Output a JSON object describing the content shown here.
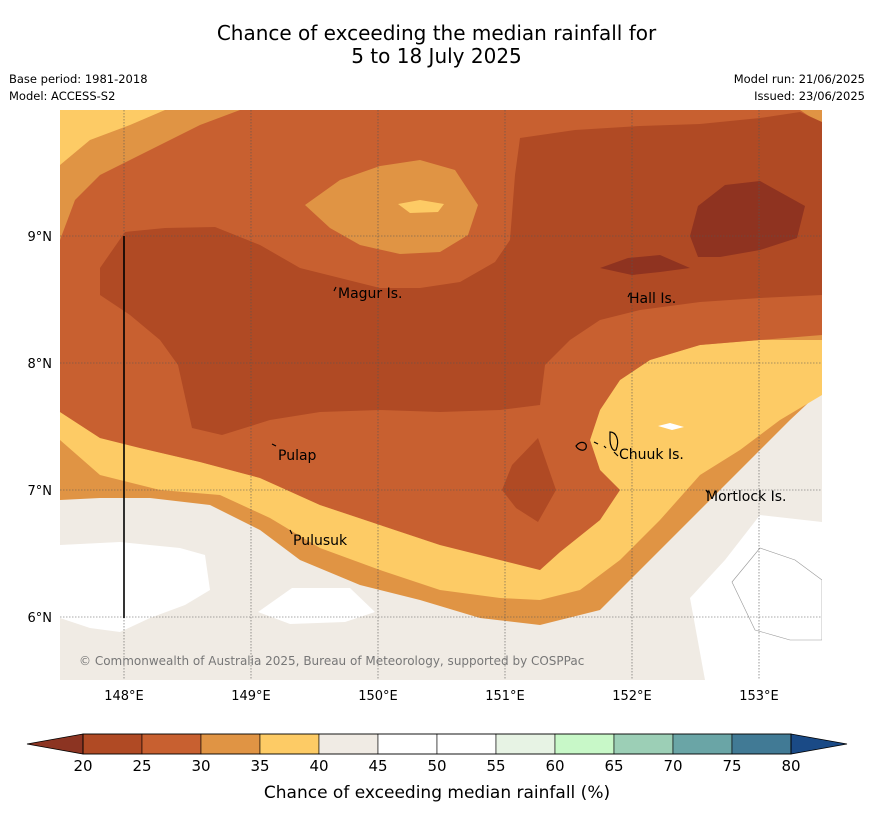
{
  "title_line1": "Chance of exceeding the median rainfall for",
  "title_line2": "5 to 18 July 2025",
  "base_period": "Base period: 1981-2018",
  "model": "Model: ACCESS-S2",
  "model_run": "Model run: 21/06/2025",
  "issued": "Issued: 23/06/2025",
  "places": {
    "magur": "Magur Is.",
    "hall": "Hall Is.",
    "pulap": "Pulap",
    "chuuk": "Chuuk Is.",
    "mortlock": "Mortlock Is.",
    "pulusuk": "Pulusuk"
  },
  "lat_ticks": [
    "9°N",
    "8°N",
    "7°N",
    "6°N"
  ],
  "lon_ticks": [
    "148°E",
    "149°E",
    "150°E",
    "151°E",
    "152°E",
    "153°E"
  ],
  "copyright": "© Commonwealth of Australia 2025, Bureau of Meteorology, supported by COSPPac",
  "colorbar": {
    "label": "Chance of exceeding median rainfall (%)",
    "ticks": [
      "20",
      "25",
      "30",
      "35",
      "40",
      "45",
      "50",
      "55",
      "60",
      "65",
      "70",
      "75",
      "80"
    ],
    "colors": [
      "#b04a24",
      "#c86030",
      "#e09444",
      "#fdcb65",
      "#f0ebe4",
      "#ffffff",
      "#ffffff",
      "#e7f3e4",
      "#c8f8c8",
      "#9ccfb6",
      "#6aa5a6",
      "#417a95"
    ],
    "under_color": "#8c3422",
    "over_color": "#1a4a86"
  },
  "colors": {
    "c20": "#8f3320",
    "c25": "#b04a24",
    "c30": "#c86030",
    "c35": "#e09444",
    "c40": "#fdcb65",
    "c45": "#f0ebe4",
    "c50": "#ffffff"
  }
}
